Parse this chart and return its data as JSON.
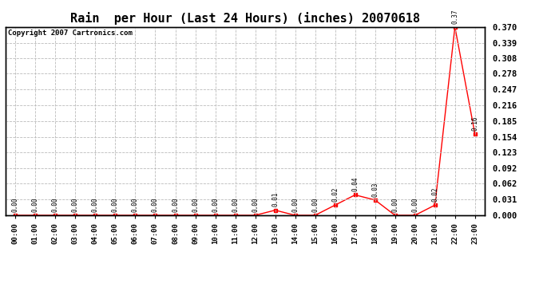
{
  "title": "Rain  per Hour (Last 24 Hours) (inches) 20070618",
  "copyright": "Copyright 2007 Cartronics.com",
  "hours": [
    "00:00",
    "01:00",
    "02:00",
    "03:00",
    "04:00",
    "05:00",
    "06:00",
    "07:00",
    "08:00",
    "09:00",
    "10:00",
    "11:00",
    "12:00",
    "13:00",
    "14:00",
    "15:00",
    "16:00",
    "17:00",
    "18:00",
    "19:00",
    "20:00",
    "21:00",
    "22:00",
    "23:00"
  ],
  "values": [
    0.0,
    0.0,
    0.0,
    0.0,
    0.0,
    0.0,
    0.0,
    0.0,
    0.0,
    0.0,
    0.0,
    0.0,
    0.0,
    0.01,
    0.0,
    0.0,
    0.02,
    0.04,
    0.03,
    0.0,
    0.0,
    0.02,
    0.37,
    0.16
  ],
  "line_color": "#ff0000",
  "marker_color": "#ff0000",
  "bg_color": "#ffffff",
  "grid_color": "#bbbbbb",
  "title_fontsize": 11,
  "ymin": 0.0,
  "ymax": 0.37,
  "yticks": [
    0.0,
    0.031,
    0.062,
    0.092,
    0.123,
    0.154,
    0.185,
    0.216,
    0.247,
    0.278,
    0.308,
    0.339,
    0.37
  ]
}
